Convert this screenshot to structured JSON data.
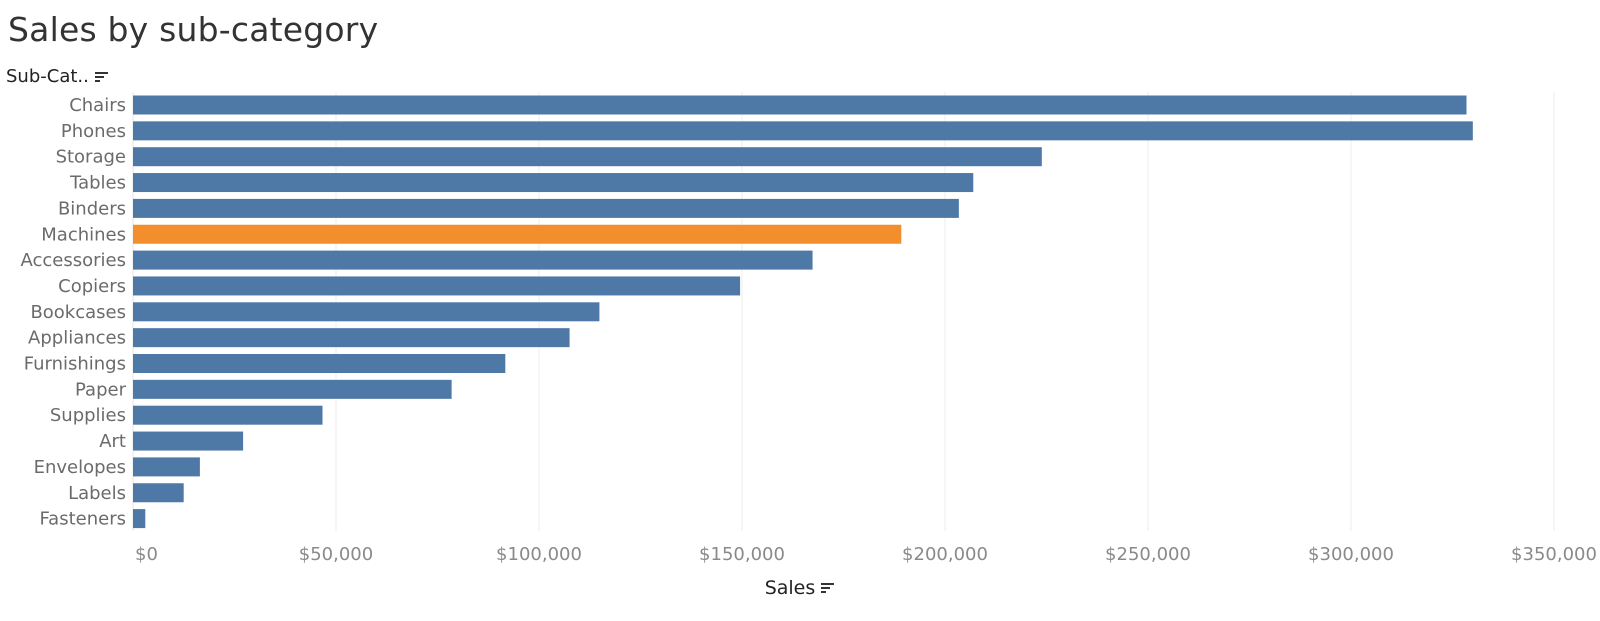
{
  "title": "Sales by sub-category",
  "row_header": "Sub-Cat..",
  "icons": {
    "row_sort": "sort-descending-icon",
    "axis_sort": "sort-descending-icon"
  },
  "colors": {
    "bar": "#4e79a7",
    "highlight": "#f28e2b",
    "grid": "#ececec"
  },
  "chart_data": {
    "type": "bar",
    "orientation": "horizontal",
    "categories": [
      "Chairs",
      "Phones",
      "Storage",
      "Tables",
      "Binders",
      "Machines",
      "Accessories",
      "Copiers",
      "Bookcases",
      "Appliances",
      "Furnishings",
      "Paper",
      "Supplies",
      "Art",
      "Envelopes",
      "Labels",
      "Fasteners"
    ],
    "values": [
      328449,
      330007,
      223844,
      206966,
      203413,
      189239,
      167380,
      149528,
      114880,
      107532,
      91705,
      78479,
      46674,
      27119,
      16476,
      12486,
      3024
    ],
    "highlighted": "Machines",
    "xlabel": "Sales",
    "ylabel": "Sub-Cat..",
    "xlim": [
      0,
      350000
    ],
    "xticks": [
      0,
      50000,
      100000,
      150000,
      200000,
      250000,
      300000,
      350000
    ],
    "xtick_labels": [
      "$0",
      "$50,000",
      "$100,000",
      "$150,000",
      "$200,000",
      "$250,000",
      "$300,000",
      "$350,000"
    ],
    "grid": true,
    "legend": "none"
  }
}
